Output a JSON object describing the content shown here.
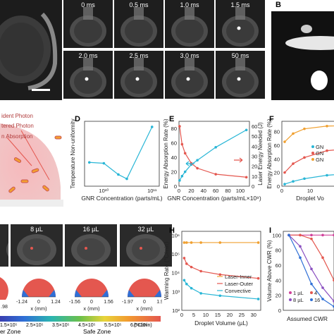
{
  "panels": {
    "B": "B",
    "D": "D",
    "E": "E",
    "F": "F",
    "H": "H",
    "I": "I"
  },
  "time_frames": [
    "0 ms",
    "0.5 ms",
    "1.0 ms",
    "1.5 ms",
    "2.0 ms",
    "2.5 ms",
    "3.0 ms",
    "50 ms"
  ],
  "photon_legend": [
    "ident Photon",
    "tered Photon",
    "n Absorption"
  ],
  "volume_frames": [
    "8 µL",
    "16 µL",
    "32 µL"
  ],
  "cross_section_ticks": [
    [
      "-1.24",
      "0",
      "1.24"
    ],
    [
      "-1.56",
      "0",
      "1.56"
    ],
    [
      "-1.97",
      "0",
      "1.97"
    ]
  ],
  "cross_section_left_tick": ".98",
  "cross_section_xlabel": "x (mm)",
  "colorbar_ticks": [
    "1.5×10⁵",
    "2.5×10⁵",
    "3.5×10⁵",
    "4.5×10⁵",
    "5.5×10⁵",
    "6.5×10⁵"
  ],
  "colorbar_unit": "(°C/min)",
  "zones": {
    "left": "er Zone",
    "right": "Safe Zone"
  },
  "colors": {
    "cyan": "#29b6d6",
    "red": "#e4574f",
    "orange": "#f0a030",
    "purple": "#8a4fc0",
    "blue": "#2f6fd6",
    "magenta": "#d0409a"
  },
  "chart_data": [
    {
      "panel": "D",
      "type": "line",
      "xlabel": "GNR Concentration (parts/mL)",
      "ylabel": "Temperature Non-uniformity",
      "xscale": "log",
      "xticks": [
        "10¹⁰",
        "10¹¹"
      ],
      "series": [
        {
          "x": [
            5000000000.0,
            10000000000.0,
            20000000000.0,
            30000000000.0,
            100000000000.0
          ],
          "values": [
            1.0,
            0.98,
            0.72,
            0.62,
            1.82
          ]
        }
      ]
    },
    {
      "panel": "E",
      "type": "line",
      "xlabel": "GNR Concentration (parts/mL×10⁹)",
      "ylabel": "Energy Absorption Rate (%)",
      "y2label": "Laser Energy Needed (J)",
      "xticks": [
        "0",
        "20",
        "40",
        "60",
        "80",
        "100"
      ],
      "yticks": [
        "0",
        "20",
        "40",
        "60",
        "80"
      ],
      "y2ticks": [
        "0",
        "10",
        "20",
        "30",
        "40",
        "50",
        "60"
      ],
      "series": [
        {
          "x": [
            1,
            5,
            10,
            20,
            30,
            60,
            110
          ],
          "values": [
            8,
            14,
            20,
            30,
            36,
            54,
            78
          ]
        },
        {
          "x": [
            1,
            5,
            10,
            20,
            30,
            60,
            110
          ],
          "values": [
            60,
            42,
            33,
            23,
            18,
            12,
            9
          ]
        }
      ]
    },
    {
      "panel": "F",
      "type": "line",
      "xlabel": "Droplet Vo",
      "ylabel": "Energy Absorption Rate (%)",
      "xticks": [
        "0",
        "10"
      ],
      "yticks": [
        "0",
        "20",
        "40",
        "60",
        "80"
      ],
      "legend": [
        "GN",
        "GN",
        "GN"
      ],
      "series": [
        {
          "x": [
            1,
            4,
            8,
            16,
            32
          ],
          "values": [
            65,
            77,
            84,
            88,
            90
          ]
        },
        {
          "x": [
            1,
            4,
            8,
            16,
            32
          ],
          "values": [
            20,
            33,
            42,
            52,
            58
          ]
        },
        {
          "x": [
            1,
            4,
            8,
            16,
            32
          ],
          "values": [
            3,
            7,
            11,
            16,
            21
          ]
        }
      ]
    },
    {
      "panel": "H",
      "type": "line",
      "xlabel": "Droplet Volume (µL)",
      "ylabel": "Warming Rate (°C/min)",
      "yscale": "log",
      "xticks": [
        "0",
        "5",
        "10",
        "15",
        "20",
        "25",
        "30"
      ],
      "yticks": [
        "10⁶",
        "10⁵",
        "10⁴",
        "10³",
        "10²"
      ],
      "legend": [
        "Laser-Inner",
        "Laser-Outer",
        "Convective"
      ],
      "series": [
        {
          "name": "Laser-Inner",
          "x": [
            1,
            2,
            4,
            8,
            16,
            32
          ],
          "values": [
            400000,
            400000,
            400000,
            400000,
            400000,
            400000
          ]
        },
        {
          "name": "Laser-Outer",
          "x": [
            1,
            2,
            4,
            8,
            16,
            32
          ],
          "values": [
            60000,
            30000,
            20000,
            12000,
            8000,
            5000
          ]
        },
        {
          "name": "Convective",
          "x": [
            1,
            2,
            4,
            8,
            16,
            32
          ],
          "values": [
            4000,
            2500,
            1500,
            800,
            600,
            400
          ]
        }
      ]
    },
    {
      "panel": "I",
      "type": "line",
      "xlabel": "Assumed CWR",
      "ylabel": "Volume Above CWR (%)",
      "yticks": [
        "0",
        "20",
        "40",
        "60",
        "80",
        "100"
      ],
      "legend": [
        "1 µL",
        "4",
        "8 µL",
        "16"
      ],
      "series": [
        {
          "name": "1 µL",
          "values": [
            100,
            100,
            100,
            100,
            100
          ]
        },
        {
          "values": [
            100,
            100,
            95,
            70,
            40
          ]
        },
        {
          "name": "8 µL",
          "values": [
            100,
            85,
            55,
            30,
            12
          ]
        },
        {
          "values": [
            100,
            70,
            35,
            15,
            5
          ]
        }
      ]
    }
  ]
}
